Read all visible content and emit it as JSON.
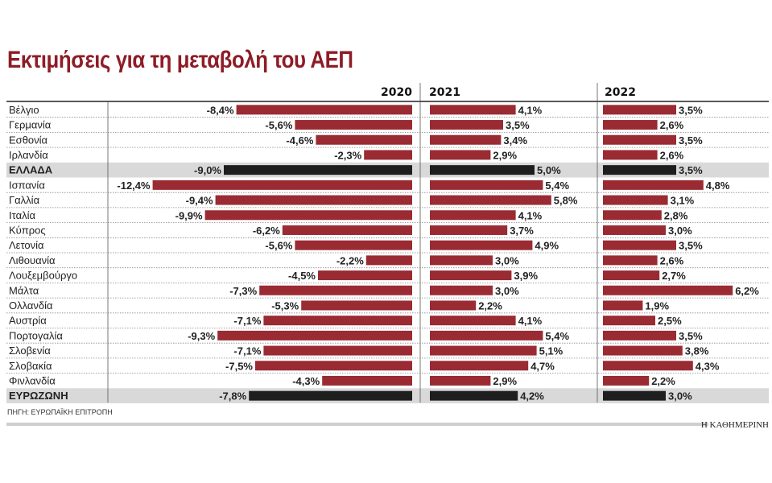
{
  "chart_data": {
    "type": "bar",
    "orientation": "horizontal",
    "title": "Εκτιμήσεις για τη μεταβολή του ΑΕΠ",
    "categories": [
      "Βέλγιο",
      "Γερμανία",
      "Εσθονία",
      "Ιρλανδία",
      "ΕΛΛΑΔΑ",
      "Ισπανία",
      "Γαλλία",
      "Ιταλία",
      "Κύπρος",
      "Λετονία",
      "Λιθουανία",
      "Λουξεμβούργο",
      "Μάλτα",
      "Ολλανδία",
      "Αυστρία",
      "Πορτογαλία",
      "Σλοβενία",
      "Σλοβακία",
      "Φινλανδία",
      "ΕΥΡΩΖΩΝΗ"
    ],
    "highlighted": [
      "ΕΛΛΑΔΑ",
      "ΕΥΡΩΖΩΝΗ"
    ],
    "series": [
      {
        "name": "2020",
        "values": [
          -8.4,
          -5.6,
          -4.6,
          -2.3,
          -9.0,
          -12.4,
          -9.4,
          -9.9,
          -6.2,
          -5.6,
          -2.2,
          -4.5,
          -7.3,
          -5.3,
          -7.1,
          -9.3,
          -7.1,
          -7.5,
          -4.3,
          -7.8
        ]
      },
      {
        "name": "2021",
        "values": [
          4.1,
          3.5,
          3.4,
          2.9,
          5.0,
          5.4,
          5.8,
          4.1,
          3.7,
          4.9,
          3.0,
          3.9,
          3.0,
          2.2,
          4.1,
          5.4,
          5.1,
          4.7,
          2.9,
          4.2
        ]
      },
      {
        "name": "2022",
        "values": [
          3.5,
          2.6,
          3.5,
          2.6,
          3.5,
          4.8,
          3.1,
          2.8,
          3.0,
          3.5,
          2.6,
          2.7,
          6.2,
          1.9,
          2.5,
          3.5,
          3.8,
          4.3,
          2.2,
          3.0
        ]
      }
    ],
    "unit": "%",
    "colors": {
      "bar": "#9a2b33",
      "highlight_bar": "#1e1e1e",
      "highlight_row": "#d9d9d9",
      "title": "#8e1c26"
    },
    "source": "ΠΗΓΗ: ΕΥΡΩΠΑΪΚΗ ΕΠΙΤΡΟΠΗ",
    "brand": "Η ΚΑΘΗΜΕΡΙΝΗ"
  }
}
